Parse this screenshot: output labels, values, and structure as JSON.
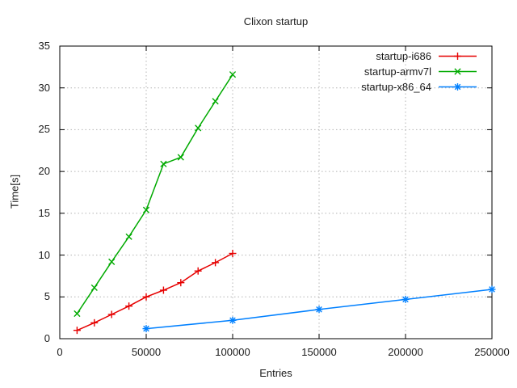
{
  "chart_data": {
    "type": "line",
    "title": "Clixon startup",
    "xlabel": "Entries",
    "ylabel": "Time[s]",
    "xlim": [
      0,
      250000
    ],
    "ylim": [
      0,
      35
    ],
    "xticks": [
      0,
      50000,
      100000,
      150000,
      200000,
      250000
    ],
    "yticks": [
      0,
      5,
      10,
      15,
      20,
      25,
      30,
      35
    ],
    "grid": true,
    "grid_style": "dotted",
    "legend_position": "top-right-inside",
    "colors": {
      "grid": "#b4b4b4",
      "border": "#000000",
      "text": "#1a1a1a",
      "background": "#ffffff"
    },
    "series": [
      {
        "name": "startup-i686",
        "color": "#e60000",
        "marker": "plus",
        "x": [
          10000,
          20000,
          30000,
          40000,
          50000,
          60000,
          70000,
          80000,
          90000,
          100000
        ],
        "y": [
          1.0,
          1.9,
          2.9,
          3.9,
          5.0,
          5.8,
          6.7,
          8.1,
          9.1,
          10.2
        ]
      },
      {
        "name": "startup-armv7l",
        "color": "#00aa00",
        "marker": "cross",
        "x": [
          10000,
          20000,
          30000,
          40000,
          50000,
          60000,
          70000,
          80000,
          90000,
          100000
        ],
        "y": [
          3.0,
          6.1,
          9.2,
          12.2,
          15.4,
          20.9,
          21.7,
          25.2,
          28.4,
          31.6
        ]
      },
      {
        "name": "startup-x86_64",
        "color": "#0080ff",
        "marker": "asterisk",
        "x": [
          50000,
          100000,
          150000,
          200000,
          250000
        ],
        "y": [
          1.2,
          2.2,
          3.5,
          4.7,
          5.9
        ]
      }
    ]
  }
}
